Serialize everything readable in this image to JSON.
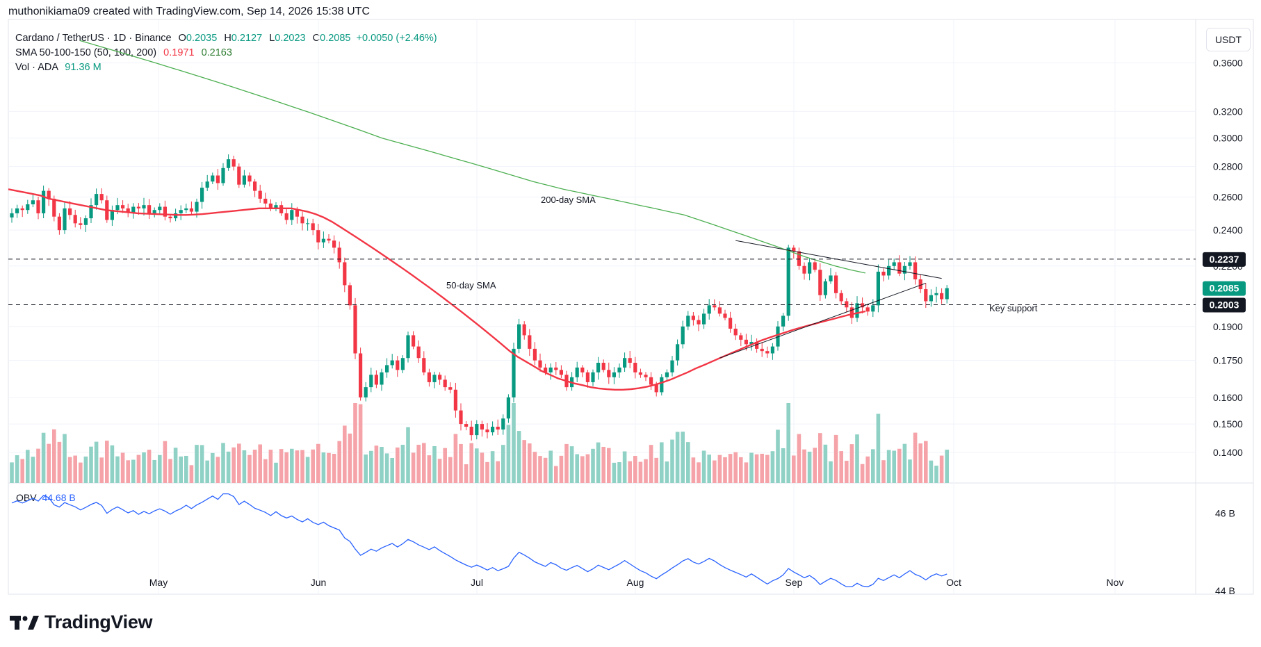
{
  "header": {
    "credit": "muthonikiama09 created with TradingView.com, Sep 14, 2026 15:38 UTC"
  },
  "legend": {
    "symbol": "Cardano / TetherUS · 1D · Binance",
    "o_label": "O",
    "o": "0.2035",
    "h_label": "H",
    "h": "0.2127",
    "l_label": "L",
    "l": "0.2023",
    "c_label": "C",
    "c": "0.2085",
    "change": "+0.0050 (+2.46%)",
    "sma_label": "SMA 50-100-150 (50, 100, 200)",
    "sma_a": "0.1971",
    "sma_b": "0.2163",
    "vol_label": "Vol · ADA",
    "vol": "91.36 M"
  },
  "obv": {
    "label": "OBV",
    "value": "44.68 B"
  },
  "currency_button": "USDT",
  "brand": "TradingView",
  "colors": {
    "up": "#089981",
    "down": "#f23645",
    "sma50": "#f23645",
    "sma200": "#4caf50",
    "obv": "#2962ff",
    "trend": "#131722"
  },
  "chart_data": {
    "type": "candlestick",
    "price_scale": "log",
    "y_ticks": [
      "0.3600",
      "0.3200",
      "0.3000",
      "0.2800",
      "0.2600",
      "0.2400",
      "0.2200",
      "0.1900",
      "0.1750",
      "0.1600",
      "0.1500",
      "0.1400"
    ],
    "x_ticks": [
      "May",
      "Jun",
      "Jul",
      "Aug",
      "Sep",
      "Oct",
      "Nov"
    ],
    "obv_ticks": [
      "46 B",
      "44 B"
    ],
    "price_labels": [
      {
        "value": "0.2237",
        "style": "dark"
      },
      {
        "value": "0.2085",
        "style": "green"
      },
      {
        "value": "0.2003",
        "style": "dark"
      }
    ],
    "horizontal_lines": [
      0.2237,
      0.2003
    ],
    "annotations": [
      "200-day SMA",
      "50-day SMA",
      "Key support"
    ],
    "trendlines": [
      {
        "from": [
          "2026-08-16",
          0.234
        ],
        "to": [
          "2026-09-24",
          0.2135
        ]
      },
      {
        "from": [
          "2026-08-13",
          0.176
        ],
        "to": [
          "2026-09-21",
          0.211
        ]
      }
    ],
    "close": [
      0.25,
      0.253,
      0.252,
      0.2555,
      0.258,
      0.25,
      0.264,
      0.259,
      0.248,
      0.24,
      0.253,
      0.249,
      0.244,
      0.243,
      0.247,
      0.255,
      0.262,
      0.258,
      0.246,
      0.252,
      0.255,
      0.253,
      0.2505,
      0.254,
      0.253,
      0.255,
      0.25,
      0.252,
      0.254,
      0.248,
      0.247,
      0.25,
      0.252,
      0.253,
      0.251,
      0.257,
      0.266,
      0.27,
      0.274,
      0.269,
      0.279,
      0.285,
      0.28,
      0.268,
      0.274,
      0.27,
      0.264,
      0.259,
      0.256,
      0.253,
      0.255,
      0.25,
      0.246,
      0.252,
      0.248,
      0.244,
      0.244,
      0.24,
      0.233,
      0.235,
      0.234,
      0.23,
      0.222,
      0.21,
      0.2,
      0.178,
      0.16,
      0.164,
      0.169,
      0.165,
      0.17,
      0.173,
      0.175,
      0.171,
      0.176,
      0.186,
      0.181,
      0.176,
      0.17,
      0.166,
      0.169,
      0.167,
      0.164,
      0.163,
      0.155,
      0.15,
      0.149,
      0.146,
      0.15,
      0.148,
      0.147,
      0.149,
      0.148,
      0.152,
      0.16,
      0.18,
      0.191,
      0.186,
      0.18,
      0.175,
      0.172,
      0.17,
      0.172,
      0.171,
      0.169,
      0.164,
      0.168,
      0.172,
      0.17,
      0.166,
      0.17,
      0.174,
      0.171,
      0.168,
      0.17,
      0.172,
      0.176,
      0.174,
      0.17,
      0.169,
      0.168,
      0.165,
      0.162,
      0.168,
      0.17,
      0.175,
      0.182,
      0.19,
      0.195,
      0.193,
      0.191,
      0.196,
      0.2,
      0.199,
      0.196,
      0.194,
      0.189,
      0.186,
      0.184,
      0.182,
      0.183,
      0.18,
      0.179,
      0.178,
      0.181,
      0.19,
      0.195,
      0.23,
      0.228,
      0.22,
      0.216,
      0.222,
      0.218,
      0.205,
      0.212,
      0.215,
      0.206,
      0.202,
      0.199,
      0.194,
      0.201,
      0.199,
      0.197,
      0.2,
      0.217,
      0.215,
      0.22,
      0.222,
      0.216,
      0.22,
      0.222,
      0.213,
      0.208,
      0.202,
      0.205,
      0.206,
      0.203,
      0.2085
    ],
    "sma50": [
      0.265,
      0.264,
      0.263,
      0.262,
      0.261,
      0.259,
      0.258,
      0.257,
      0.256,
      0.255,
      0.254,
      0.253,
      0.252,
      0.2515,
      0.251,
      0.2505,
      0.25,
      0.2498,
      0.2496,
      0.2494,
      0.2492,
      0.249,
      0.249,
      0.2492,
      0.2495,
      0.25,
      0.2505,
      0.251,
      0.2515,
      0.252,
      0.2525,
      0.253,
      0.253,
      0.253,
      0.253,
      0.253,
      0.252,
      0.251,
      0.2495,
      0.2475,
      0.245,
      0.242,
      0.239,
      0.236,
      0.233,
      0.23,
      0.227,
      0.224,
      0.221,
      0.218,
      0.215,
      0.212,
      0.209,
      0.206,
      0.203,
      0.2,
      0.197,
      0.194,
      0.191,
      0.188,
      0.185,
      0.182,
      0.179,
      0.1765,
      0.1745,
      0.1725,
      0.1705,
      0.169,
      0.1675,
      0.1665,
      0.1655,
      0.1648,
      0.164,
      0.1635,
      0.1632,
      0.163,
      0.163,
      0.1632,
      0.1636,
      0.1642,
      0.165,
      0.166,
      0.1672,
      0.1686,
      0.17,
      0.1716,
      0.173,
      0.1745,
      0.176,
      0.1775,
      0.179,
      0.1805,
      0.182,
      0.1835,
      0.1848,
      0.186,
      0.1872,
      0.1884,
      0.1895,
      0.1905,
      0.1915,
      0.1925,
      0.1935,
      0.1945,
      0.1955,
      0.1963,
      0.1971
    ],
    "sma200": [
      0.38,
      0.376,
      0.372,
      0.368,
      0.364,
      0.36,
      0.356,
      0.352,
      0.348,
      0.344,
      0.34,
      0.336,
      0.332,
      0.328,
      0.324,
      0.32,
      0.316,
      0.312,
      0.308,
      0.304,
      0.3,
      0.297,
      0.294,
      0.291,
      0.288,
      0.285,
      0.282,
      0.279,
      0.276,
      0.273,
      0.27,
      0.2675,
      0.265,
      0.263,
      0.261,
      0.259,
      0.257,
      0.255,
      0.253,
      0.251,
      0.249,
      0.246,
      0.243,
      0.24,
      0.237,
      0.234,
      0.231,
      0.228,
      0.225,
      0.2225,
      0.22,
      0.218,
      0.2163
    ],
    "volume_pattern": "daily volume bars beneath price; larger spikes early June and mid-August",
    "obv_range": [
      44,
      46.6
    ]
  }
}
